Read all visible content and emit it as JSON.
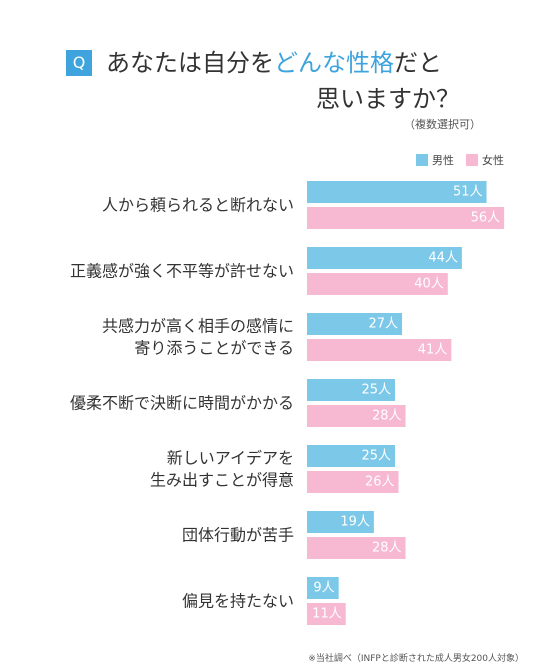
{
  "question": {
    "badge": "Q",
    "line1_pre": "あなたは自分を",
    "line1_highlight": "どんな性格",
    "line1_post": "だと",
    "line2": "思いますか？",
    "note": "（複数選択可）"
  },
  "colors": {
    "male": "#7cc8e8",
    "female": "#f7b8d2",
    "accent": "#3fa4dd"
  },
  "footnote": "※当社調べ（INFPと診断された成人男女200人対象）",
  "chart_data": {
    "type": "bar",
    "orientation": "horizontal",
    "unit": "人",
    "categories": [
      [
        "人から頼られると断れない"
      ],
      [
        "正義感が強く不平等が許せない"
      ],
      [
        "共感力が高く相手の感情に",
        "寄り添うことができる"
      ],
      [
        "優柔不断で決断に時間がかかる"
      ],
      [
        "新しいアイデアを",
        "生み出すことが得意"
      ],
      [
        "団体行動が苦手"
      ],
      [
        "偏見を持たない"
      ]
    ],
    "series": [
      {
        "name": "男性",
        "values": [
          51,
          44,
          27,
          25,
          25,
          19,
          9
        ]
      },
      {
        "name": "女性",
        "values": [
          56,
          40,
          41,
          28,
          26,
          28,
          11
        ]
      }
    ],
    "legend_position": "top-right",
    "grid": false
  }
}
